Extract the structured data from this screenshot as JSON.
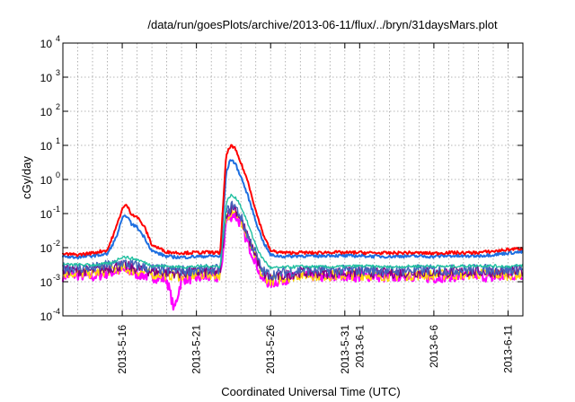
{
  "chart_data": {
    "type": "line",
    "title": "/data/run/goesPlots/archive/2013-06-11/flux/../bryn/31daysMars.plot",
    "xlabel": "Coordinated Universal Time (UTC)",
    "ylabel": "cGy/day",
    "yscale": "log",
    "ylim": [
      0.0001,
      10000
    ],
    "xlim": [
      "2013-05-12",
      "2013-06-12"
    ],
    "grid": true,
    "y_ticks": [
      {
        "base": "10",
        "exp": "-4",
        "value": 0.0001
      },
      {
        "base": "10",
        "exp": "-3",
        "value": 0.001
      },
      {
        "base": "10",
        "exp": "-2",
        "value": 0.01
      },
      {
        "base": "10",
        "exp": "-1",
        "value": 0.1
      },
      {
        "base": "10",
        "exp": "0",
        "value": 1
      },
      {
        "base": "10",
        "exp": "1",
        "value": 10
      },
      {
        "base": "10",
        "exp": "2",
        "value": 100
      },
      {
        "base": "10",
        "exp": "3",
        "value": 1000
      },
      {
        "base": "10",
        "exp": "4",
        "value": 10000
      }
    ],
    "x_ticks": [
      {
        "label": "2013-5-16",
        "date": "2013-05-16"
      },
      {
        "label": "2013-5-21",
        "date": "2013-05-21"
      },
      {
        "label": "2013-5-26",
        "date": "2013-05-26"
      },
      {
        "label": "2013-5-31",
        "date": "2013-05-31"
      },
      {
        "label": "2013-6-1",
        "date": "2013-06-01"
      },
      {
        "label": "2013-6-6",
        "date": "2013-06-06"
      },
      {
        "label": "2013-6-11",
        "date": "2013-06-11"
      }
    ],
    "x_minor_grid": [
      "2013-05-13",
      "2013-05-14",
      "2013-05-15",
      "2013-05-17",
      "2013-05-18",
      "2013-05-19",
      "2013-05-20",
      "2013-05-22",
      "2013-05-23",
      "2013-05-24",
      "2013-05-25",
      "2013-05-27",
      "2013-05-28",
      "2013-05-29",
      "2013-05-30",
      "2013-06-02",
      "2013-06-03",
      "2013-06-04",
      "2013-06-05",
      "2013-06-07",
      "2013-06-08",
      "2013-06-09",
      "2013-06-10"
    ],
    "series": [
      {
        "color": "#ff00ff",
        "values": [
          [
            "2013-05-12",
            0.0015
          ],
          [
            "2013-05-13",
            0.0016
          ],
          [
            "2013-05-14",
            0.0014
          ],
          [
            "2013-05-15",
            0.0018
          ],
          [
            "2013-05-16",
            0.0022
          ],
          [
            "2013-05-17",
            0.0017
          ],
          [
            "2013-05-18",
            0.0014
          ],
          [
            "2013-05-19",
            0.0012
          ],
          [
            "2013-05-19.5",
            0.00015
          ],
          [
            "2013-05-20",
            0.0012
          ],
          [
            "2013-05-21",
            0.0013
          ],
          [
            "2013-05-22",
            0.0014
          ],
          [
            "2013-05-22.6",
            0.0013
          ],
          [
            "2013-05-23",
            0.06
          ],
          [
            "2013-05-23.5",
            0.1
          ],
          [
            "2013-05-24",
            0.05
          ],
          [
            "2013-05-24.5",
            0.012
          ],
          [
            "2013-05-25",
            0.004
          ],
          [
            "2013-05-25.4",
            0.0012
          ],
          [
            "2013-05-26",
            0.0009
          ],
          [
            "2013-05-27",
            0.0012
          ],
          [
            "2013-05-28",
            0.0014
          ],
          [
            "2013-05-29",
            0.0015
          ],
          [
            "2013-05-30",
            0.0013
          ],
          [
            "2013-05-31",
            0.0016
          ],
          [
            "2013-06-01",
            0.0014
          ],
          [
            "2013-06-02",
            0.0015
          ],
          [
            "2013-06-03",
            0.0013
          ],
          [
            "2013-06-04",
            0.0016
          ],
          [
            "2013-06-05",
            0.0014
          ],
          [
            "2013-06-06",
            0.0013
          ],
          [
            "2013-06-07",
            0.0015
          ],
          [
            "2013-06-08",
            0.0014
          ],
          [
            "2013-06-09",
            0.0016
          ],
          [
            "2013-06-10",
            0.0013
          ],
          [
            "2013-06-11",
            0.0015
          ],
          [
            "2013-06-12",
            0.0016
          ]
        ]
      },
      {
        "color": "#ffdd00",
        "values": [
          [
            "2013-05-12",
            0.0018
          ],
          [
            "2013-05-14",
            0.0018
          ],
          [
            "2013-05-16",
            0.0025
          ],
          [
            "2013-05-18",
            0.0017
          ],
          [
            "2013-05-20",
            0.0015
          ],
          [
            "2013-05-22",
            0.0017
          ],
          [
            "2013-05-22.6",
            0.0016
          ],
          [
            "2013-05-23",
            0.08
          ],
          [
            "2013-05-23.5",
            0.14
          ],
          [
            "2013-05-24",
            0.06
          ],
          [
            "2013-05-24.5",
            0.015
          ],
          [
            "2013-05-25",
            0.005
          ],
          [
            "2013-05-25.4",
            0.0015
          ],
          [
            "2013-05-26",
            0.0011
          ],
          [
            "2013-05-28",
            0.0016
          ],
          [
            "2013-05-30",
            0.0015
          ],
          [
            "2013-06-01",
            0.0016
          ],
          [
            "2013-06-03",
            0.0015
          ],
          [
            "2013-06-05",
            0.0016
          ],
          [
            "2013-06-07",
            0.0016
          ],
          [
            "2013-06-09",
            0.0017
          ],
          [
            "2013-06-11",
            0.0016
          ],
          [
            "2013-06-12",
            0.0017
          ]
        ]
      },
      {
        "color": "#800080",
        "values": [
          [
            "2013-05-12",
            0.0022
          ],
          [
            "2013-05-14",
            0.0021
          ],
          [
            "2013-05-16",
            0.003
          ],
          [
            "2013-05-18",
            0.002
          ],
          [
            "2013-05-20",
            0.0018
          ],
          [
            "2013-05-22",
            0.002
          ],
          [
            "2013-05-22.6",
            0.0019
          ],
          [
            "2013-05-23",
            0.1
          ],
          [
            "2013-05-23.5",
            0.17
          ],
          [
            "2013-05-24",
            0.07
          ],
          [
            "2013-05-24.5",
            0.018
          ],
          [
            "2013-05-25",
            0.006
          ],
          [
            "2013-05-25.4",
            0.0018
          ],
          [
            "2013-05-26",
            0.0013
          ],
          [
            "2013-05-28",
            0.0019
          ],
          [
            "2013-05-30",
            0.0018
          ],
          [
            "2013-06-01",
            0.0019
          ],
          [
            "2013-06-03",
            0.0018
          ],
          [
            "2013-06-05",
            0.0019
          ],
          [
            "2013-06-07",
            0.0019
          ],
          [
            "2013-06-09",
            0.002
          ],
          [
            "2013-06-11",
            0.0019
          ],
          [
            "2013-06-12",
            0.002
          ]
        ]
      },
      {
        "color": "#4466bb",
        "values": [
          [
            "2013-05-12",
            0.0026
          ],
          [
            "2013-05-14",
            0.0025
          ],
          [
            "2013-05-16",
            0.0036
          ],
          [
            "2013-05-18",
            0.0024
          ],
          [
            "2013-05-20",
            0.0021
          ],
          [
            "2013-05-22",
            0.0023
          ],
          [
            "2013-05-22.6",
            0.0022
          ],
          [
            "2013-05-23",
            0.11
          ],
          [
            "2013-05-23.5",
            0.19
          ],
          [
            "2013-05-24",
            0.08
          ],
          [
            "2013-05-24.5",
            0.02
          ],
          [
            "2013-05-25",
            0.007
          ],
          [
            "2013-05-25.4",
            0.0021
          ],
          [
            "2013-05-26",
            0.0016
          ],
          [
            "2013-05-28",
            0.0022
          ],
          [
            "2013-05-30",
            0.0021
          ],
          [
            "2013-06-01",
            0.0022
          ],
          [
            "2013-06-03",
            0.0021
          ],
          [
            "2013-06-05",
            0.0022
          ],
          [
            "2013-06-07",
            0.0022
          ],
          [
            "2013-06-09",
            0.0023
          ],
          [
            "2013-06-11",
            0.0022
          ],
          [
            "2013-06-12",
            0.0023
          ]
        ]
      },
      {
        "color": "#20c0a0",
        "values": [
          [
            "2013-05-12",
            0.0032
          ],
          [
            "2013-05-14",
            0.0031
          ],
          [
            "2013-05-15.3",
            0.0035
          ],
          [
            "2013-05-16",
            0.0055
          ],
          [
            "2013-05-17",
            0.0045
          ],
          [
            "2013-05-18",
            0.003
          ],
          [
            "2013-05-20",
            0.0027
          ],
          [
            "2013-05-22",
            0.0029
          ],
          [
            "2013-05-22.6",
            0.0028
          ],
          [
            "2013-05-23",
            0.2
          ],
          [
            "2013-05-23.3",
            0.35
          ],
          [
            "2013-05-23.8",
            0.25
          ],
          [
            "2013-05-24.3",
            0.08
          ],
          [
            "2013-05-24.8",
            0.02
          ],
          [
            "2013-05-25.3",
            0.006
          ],
          [
            "2013-05-26",
            0.0025
          ],
          [
            "2013-05-28",
            0.0028
          ],
          [
            "2013-05-30",
            0.0027
          ],
          [
            "2013-06-01",
            0.0029
          ],
          [
            "2013-06-03",
            0.0027
          ],
          [
            "2013-06-05",
            0.0029
          ],
          [
            "2013-06-07",
            0.0028
          ],
          [
            "2013-06-09",
            0.003
          ],
          [
            "2013-06-11",
            0.0028
          ],
          [
            "2013-06-12",
            0.003
          ]
        ]
      },
      {
        "color": "#1e6fe0",
        "values": [
          [
            "2013-05-12",
            0.0055
          ],
          [
            "2013-05-13",
            0.0052
          ],
          [
            "2013-05-14",
            0.0058
          ],
          [
            "2013-05-15",
            0.0065
          ],
          [
            "2013-05-15.6",
            0.02
          ],
          [
            "2013-05-16",
            0.07
          ],
          [
            "2013-05-16.3",
            0.09
          ],
          [
            "2013-05-16.6",
            0.05
          ],
          [
            "2013-05-17",
            0.04
          ],
          [
            "2013-05-17.5",
            0.02
          ],
          [
            "2013-05-18",
            0.008
          ],
          [
            "2013-05-19",
            0.0055
          ],
          [
            "2013-05-20",
            0.0052
          ],
          [
            "2013-05-21",
            0.0055
          ],
          [
            "2013-05-22",
            0.0057
          ],
          [
            "2013-05-22.6",
            0.0055
          ],
          [
            "2013-05-23",
            1.5
          ],
          [
            "2013-05-23.3",
            4
          ],
          [
            "2013-05-23.6",
            3
          ],
          [
            "2013-05-24",
            1.2
          ],
          [
            "2013-05-24.5",
            0.3
          ],
          [
            "2013-05-25",
            0.06
          ],
          [
            "2013-05-25.5",
            0.015
          ],
          [
            "2013-05-26",
            0.006
          ],
          [
            "2013-05-27",
            0.0055
          ],
          [
            "2013-05-28",
            0.0058
          ],
          [
            "2013-05-29",
            0.0056
          ],
          [
            "2013-05-30",
            0.006
          ],
          [
            "2013-05-31",
            0.0057
          ],
          [
            "2013-06-01",
            0.0058
          ],
          [
            "2013-06-02",
            0.0056
          ],
          [
            "2013-06-03",
            0.0055
          ],
          [
            "2013-06-04",
            0.0057
          ],
          [
            "2013-06-05",
            0.0056
          ],
          [
            "2013-06-06",
            0.0055
          ],
          [
            "2013-06-07",
            0.0058
          ],
          [
            "2013-06-08",
            0.0056
          ],
          [
            "2013-06-09",
            0.0058
          ],
          [
            "2013-06-10",
            0.0062
          ],
          [
            "2013-06-11",
            0.007
          ],
          [
            "2013-06-12",
            0.0075
          ]
        ]
      },
      {
        "color": "#ff0000",
        "values": [
          [
            "2013-05-12",
            0.0065
          ],
          [
            "2013-05-13",
            0.0062
          ],
          [
            "2013-05-14",
            0.007
          ],
          [
            "2013-05-15",
            0.0085
          ],
          [
            "2013-05-15.6",
            0.04
          ],
          [
            "2013-05-16",
            0.14
          ],
          [
            "2013-05-16.3",
            0.18
          ],
          [
            "2013-05-16.6",
            0.1
          ],
          [
            "2013-05-17",
            0.08
          ],
          [
            "2013-05-17.5",
            0.04
          ],
          [
            "2013-05-18",
            0.012
          ],
          [
            "2013-05-19",
            0.0075
          ],
          [
            "2013-05-20",
            0.007
          ],
          [
            "2013-05-21",
            0.0072
          ],
          [
            "2013-05-22",
            0.0073
          ],
          [
            "2013-05-22.6",
            0.007
          ],
          [
            "2013-05-23",
            5
          ],
          [
            "2013-05-23.3",
            10
          ],
          [
            "2013-05-23.6",
            8
          ],
          [
            "2013-05-24",
            3
          ],
          [
            "2013-05-24.5",
            0.8
          ],
          [
            "2013-05-25",
            0.12
          ],
          [
            "2013-05-25.5",
            0.025
          ],
          [
            "2013-05-26",
            0.008
          ],
          [
            "2013-05-27",
            0.007
          ],
          [
            "2013-05-28",
            0.0072
          ],
          [
            "2013-05-29",
            0.007
          ],
          [
            "2013-05-30",
            0.0074
          ],
          [
            "2013-05-31",
            0.0071
          ],
          [
            "2013-06-01",
            0.0072
          ],
          [
            "2013-06-02",
            0.007
          ],
          [
            "2013-06-03",
            0.0069
          ],
          [
            "2013-06-04",
            0.0071
          ],
          [
            "2013-06-05",
            0.007
          ],
          [
            "2013-06-06",
            0.0068
          ],
          [
            "2013-06-07",
            0.0072
          ],
          [
            "2013-06-08",
            0.007
          ],
          [
            "2013-06-09",
            0.0072
          ],
          [
            "2013-06-10",
            0.0078
          ],
          [
            "2013-06-11",
            0.0088
          ],
          [
            "2013-06-12",
            0.0095
          ]
        ]
      }
    ]
  }
}
